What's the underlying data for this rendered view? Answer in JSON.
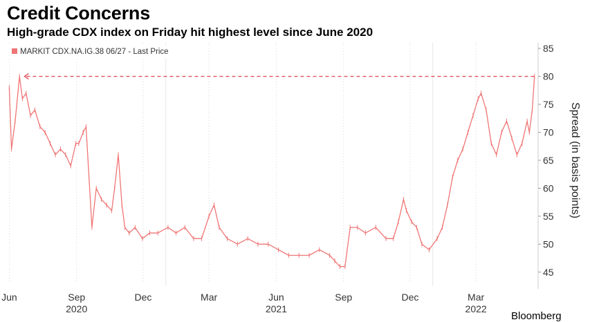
{
  "chart_data": {
    "type": "line",
    "title": "Credit Concerns",
    "subtitle": "High-grade CDX index on Friday hit highest level since June 2020",
    "series": [
      {
        "name": "MARKIT CDX.NA.IG.38 06/27 - Last Price",
        "color": "#f07575",
        "points": [
          {
            "x": "2020-06-01",
            "y": 78
          },
          {
            "x": "2020-06-04",
            "y": 67
          },
          {
            "x": "2020-06-09",
            "y": 72
          },
          {
            "x": "2020-06-15",
            "y": 80
          },
          {
            "x": "2020-06-19",
            "y": 76
          },
          {
            "x": "2020-06-24",
            "y": 77
          },
          {
            "x": "2020-06-30",
            "y": 73
          },
          {
            "x": "2020-07-06",
            "y": 74
          },
          {
            "x": "2020-07-13",
            "y": 71
          },
          {
            "x": "2020-07-20",
            "y": 70
          },
          {
            "x": "2020-07-27",
            "y": 68
          },
          {
            "x": "2020-08-03",
            "y": 66
          },
          {
            "x": "2020-08-10",
            "y": 67
          },
          {
            "x": "2020-08-17",
            "y": 66
          },
          {
            "x": "2020-08-24",
            "y": 64
          },
          {
            "x": "2020-08-31",
            "y": 68
          },
          {
            "x": "2020-09-04",
            "y": 68
          },
          {
            "x": "2020-09-10",
            "y": 70
          },
          {
            "x": "2020-09-14",
            "y": 71
          },
          {
            "x": "2020-09-22",
            "y": 53
          },
          {
            "x": "2020-09-28",
            "y": 60
          },
          {
            "x": "2020-10-05",
            "y": 58
          },
          {
            "x": "2020-10-12",
            "y": 57
          },
          {
            "x": "2020-10-19",
            "y": 56
          },
          {
            "x": "2020-10-23",
            "y": 60
          },
          {
            "x": "2020-10-28",
            "y": 66
          },
          {
            "x": "2020-11-02",
            "y": 57
          },
          {
            "x": "2020-11-06",
            "y": 53
          },
          {
            "x": "2020-11-12",
            "y": 52
          },
          {
            "x": "2020-11-20",
            "y": 53
          },
          {
            "x": "2020-11-30",
            "y": 51
          },
          {
            "x": "2020-12-10",
            "y": 52
          },
          {
            "x": "2020-12-21",
            "y": 52
          },
          {
            "x": "2021-01-04",
            "y": 53
          },
          {
            "x": "2021-01-15",
            "y": 52
          },
          {
            "x": "2021-01-27",
            "y": 53
          },
          {
            "x": "2021-02-08",
            "y": 51
          },
          {
            "x": "2021-02-19",
            "y": 51
          },
          {
            "x": "2021-03-01",
            "y": 55
          },
          {
            "x": "2021-03-08",
            "y": 57
          },
          {
            "x": "2021-03-15",
            "y": 53
          },
          {
            "x": "2021-03-26",
            "y": 51
          },
          {
            "x": "2021-04-09",
            "y": 50
          },
          {
            "x": "2021-04-23",
            "y": 51
          },
          {
            "x": "2021-05-07",
            "y": 50
          },
          {
            "x": "2021-05-21",
            "y": 50
          },
          {
            "x": "2021-06-04",
            "y": 49
          },
          {
            "x": "2021-06-18",
            "y": 48
          },
          {
            "x": "2021-07-02",
            "y": 48
          },
          {
            "x": "2021-07-16",
            "y": 48
          },
          {
            "x": "2021-07-30",
            "y": 49
          },
          {
            "x": "2021-08-13",
            "y": 48
          },
          {
            "x": "2021-08-20",
            "y": 47
          },
          {
            "x": "2021-08-27",
            "y": 46
          },
          {
            "x": "2021-09-03",
            "y": 46
          },
          {
            "x": "2021-09-10",
            "y": 53
          },
          {
            "x": "2021-09-20",
            "y": 53
          },
          {
            "x": "2021-10-01",
            "y": 52
          },
          {
            "x": "2021-10-15",
            "y": 53
          },
          {
            "x": "2021-10-29",
            "y": 51
          },
          {
            "x": "2021-11-08",
            "y": 51
          },
          {
            "x": "2021-11-15",
            "y": 54
          },
          {
            "x": "2021-11-22",
            "y": 58
          },
          {
            "x": "2021-11-26",
            "y": 56
          },
          {
            "x": "2021-12-03",
            "y": 54
          },
          {
            "x": "2021-12-10",
            "y": 53
          },
          {
            "x": "2021-12-17",
            "y": 50
          },
          {
            "x": "2021-12-27",
            "y": 49
          },
          {
            "x": "2022-01-07",
            "y": 51
          },
          {
            "x": "2022-01-14",
            "y": 53
          },
          {
            "x": "2022-01-21",
            "y": 57
          },
          {
            "x": "2022-01-28",
            "y": 62
          },
          {
            "x": "2022-02-04",
            "y": 65
          },
          {
            "x": "2022-02-11",
            "y": 67
          },
          {
            "x": "2022-02-18",
            "y": 70
          },
          {
            "x": "2022-02-25",
            "y": 73
          },
          {
            "x": "2022-03-04",
            "y": 76
          },
          {
            "x": "2022-03-08",
            "y": 77
          },
          {
            "x": "2022-03-15",
            "y": 74
          },
          {
            "x": "2022-03-22",
            "y": 68
          },
          {
            "x": "2022-03-29",
            "y": 66
          },
          {
            "x": "2022-04-05",
            "y": 70
          },
          {
            "x": "2022-04-12",
            "y": 72
          },
          {
            "x": "2022-04-19",
            "y": 69
          },
          {
            "x": "2022-04-26",
            "y": 66
          },
          {
            "x": "2022-05-03",
            "y": 68
          },
          {
            "x": "2022-05-10",
            "y": 72
          },
          {
            "x": "2022-05-13",
            "y": 70
          },
          {
            "x": "2022-05-17",
            "y": 74
          },
          {
            "x": "2022-05-20",
            "y": 80
          }
        ]
      }
    ],
    "reference_line": {
      "value": 80,
      "from": "2020-06-19",
      "to": "2022-05-20",
      "style": "dashed"
    },
    "ylabel": "Spread (in basis points)",
    "ylim": [
      43,
      86
    ],
    "yticks": [
      45,
      50,
      55,
      60,
      65,
      70,
      75,
      80,
      85
    ],
    "y_axis_side": "right",
    "xlim": [
      "2020-05-25",
      "2022-05-25"
    ],
    "x_month_ticks": [
      {
        "label": "Jun",
        "date": "2020-06-01"
      },
      {
        "label": "Sep",
        "date": "2020-09-01"
      },
      {
        "label": "Dec",
        "date": "2020-12-01"
      },
      {
        "label": "Mar",
        "date": "2021-03-01"
      },
      {
        "label": "Jun",
        "date": "2021-06-01"
      },
      {
        "label": "Sep",
        "date": "2021-09-01"
      },
      {
        "label": "Dec",
        "date": "2021-12-01"
      },
      {
        "label": "Mar",
        "date": "2022-03-01"
      }
    ],
    "x_year_labels": [
      {
        "label": "2020",
        "date": "2020-09-01"
      },
      {
        "label": "2021",
        "date": "2021-06-01"
      },
      {
        "label": "2022",
        "date": "2022-03-01"
      }
    ],
    "legend": "top-left",
    "grid": "vertical dashed",
    "source": "Bloomberg"
  }
}
